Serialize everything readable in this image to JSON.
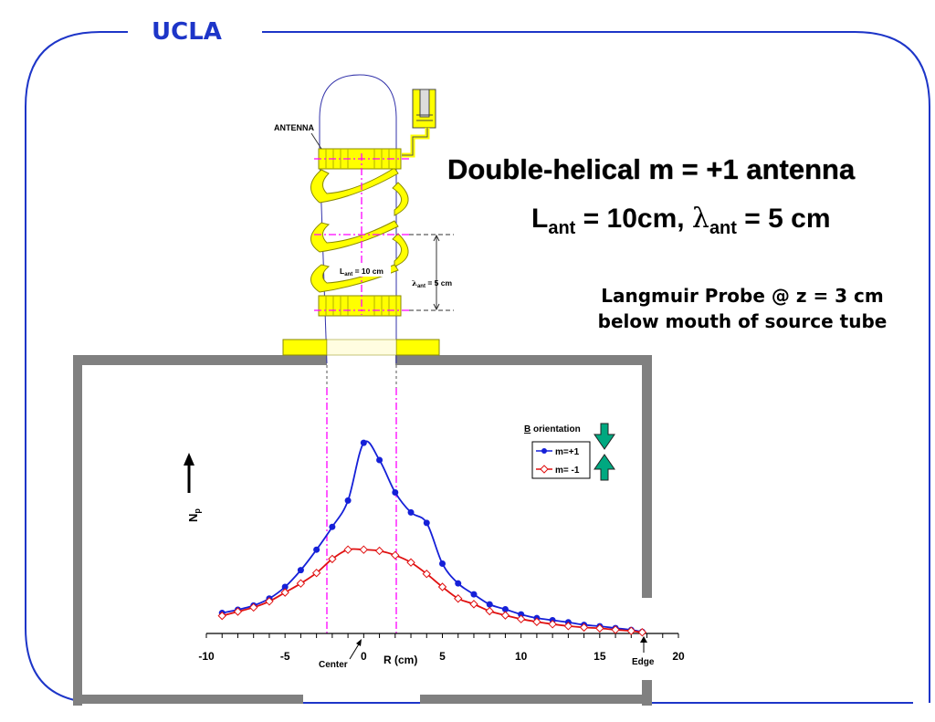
{
  "header": {
    "logo_text": "UCLA"
  },
  "slide": {
    "title": "Double-helical m = +1 antenna",
    "params": {
      "L": "L",
      "L_sub": "ant",
      "L_val": " = 10cm, ",
      "lambda": "λ",
      "lambda_sub": "ant",
      "lambda_val": " = 5 cm"
    },
    "probe_line1": "Langmuir Probe @ z = 3 cm",
    "probe_line2": "below mouth of source tube"
  },
  "antenna_diagram": {
    "label": "ANTENNA",
    "length_label": "L",
    "length_sub": "ant",
    "length_val": " = 10 cm",
    "wavelength_label": "λ",
    "wavelength_sub": "ant",
    "wavelength_val": " = 5 cm"
  },
  "colors": {
    "accent": "#1d35c8",
    "antenna": "#ffff00",
    "marker": "#ff00ff",
    "chamber": "#808080",
    "series1": "#1520d8",
    "series2": "#e01010",
    "arrow": "#00a880"
  },
  "chart_data": {
    "type": "line",
    "xlabel": "R (cm)",
    "ylabel": "N",
    "ylabel_sub": "p",
    "xlim": [
      -10,
      20
    ],
    "xticks": [
      -10,
      -5,
      0,
      5,
      10,
      15,
      20
    ],
    "ylim": [
      0,
      1
    ],
    "annotations": {
      "center": "Center",
      "edge": "Edge"
    },
    "legend": {
      "title": "B orientation",
      "title_underlined": "B",
      "position": "top-right"
    },
    "series": [
      {
        "name": "m=+1",
        "x": [
          -9,
          -8,
          -7,
          -6,
          -5,
          -4,
          -3,
          -2,
          -1,
          0,
          1,
          2,
          3,
          4,
          5,
          6,
          7,
          8,
          9,
          10,
          11,
          12,
          13,
          14,
          15,
          16,
          17,
          17.7
        ],
        "y": [
          0.088,
          0.102,
          0.12,
          0.15,
          0.2,
          0.272,
          0.36,
          0.458,
          0.571,
          0.819,
          0.745,
          0.606,
          0.52,
          0.475,
          0.3,
          0.215,
          0.168,
          0.125,
          0.104,
          0.082,
          0.066,
          0.057,
          0.048,
          0.037,
          0.031,
          0.023,
          0.015,
          0.007
        ]
      },
      {
        "name": "m= -1",
        "x": [
          -9,
          -8,
          -7,
          -6,
          -5,
          -4,
          -3,
          -2,
          -1,
          0,
          1,
          2,
          3,
          4,
          5,
          6,
          7,
          8,
          9,
          10,
          11,
          12,
          13,
          14,
          15,
          16,
          17,
          17.7
        ],
        "y": [
          0.076,
          0.094,
          0.112,
          0.138,
          0.176,
          0.215,
          0.26,
          0.32,
          0.36,
          0.36,
          0.355,
          0.336,
          0.305,
          0.256,
          0.2,
          0.15,
          0.126,
          0.096,
          0.078,
          0.062,
          0.05,
          0.04,
          0.032,
          0.026,
          0.022,
          0.016,
          0.011,
          0.005
        ]
      }
    ]
  }
}
